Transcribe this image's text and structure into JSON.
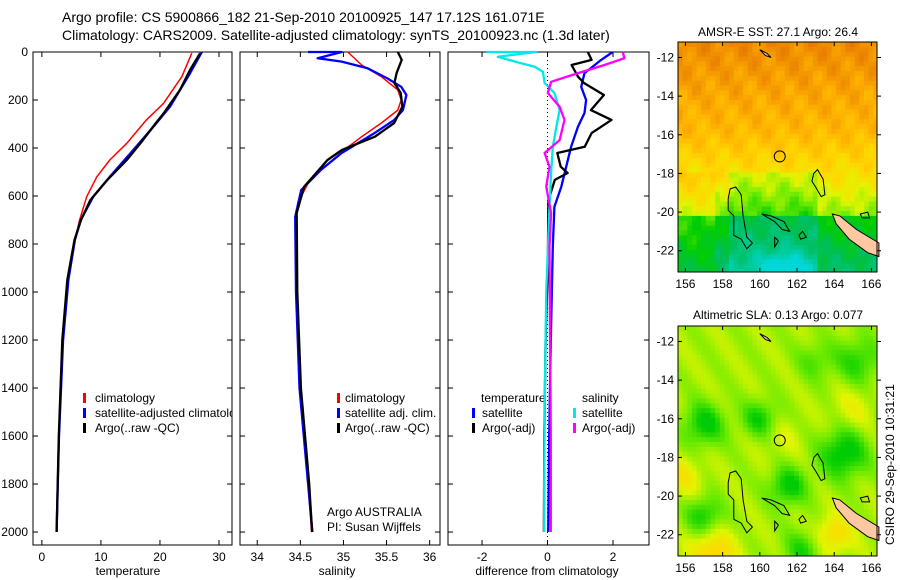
{
  "header": {
    "line1": "Argo profile: CS 5900866_182 21-Sep-2010 20100925_147 17.12S 161.071E",
    "line2": "Climatology: CARS2009. Satellite-adjusted climatology: synTS_20100923.nc (1.3d later)"
  },
  "footer_stamp": "CSIRO 29-Sep-2010 10:31:21",
  "colors": {
    "climatology": "#ff0000",
    "satellite": "#0000ff",
    "argo": "#000000",
    "sal_satellite": "#00e8e8",
    "sal_argo": "#ff00ff",
    "land": "#ffc8a0"
  },
  "chart_data": [
    {
      "type": "line",
      "id": "temperature",
      "xlabel": "temperature",
      "ylabel": "",
      "xlim": [
        -1.5,
        32.2
      ],
      "ylim": [
        2054,
        0
      ],
      "xticks": [
        "0",
        "10",
        "20",
        "30"
      ],
      "xtick_values": [
        0,
        10,
        20,
        30
      ],
      "yticks": [
        "0",
        "200",
        "400",
        "600",
        "800",
        "1000",
        "1200",
        "1400",
        "1600",
        "1800",
        "2000"
      ],
      "ytick_values": [
        0,
        200,
        400,
        600,
        800,
        1000,
        1200,
        1400,
        1600,
        1800,
        2000
      ],
      "legend": [
        "climatology",
        "satellite-adjusted climatology",
        "Argo(..raw -QC)"
      ],
      "series": [
        {
          "name": "climatology",
          "color": "#ff0000",
          "depth": [
            5,
            103,
            214,
            283,
            380,
            450,
            520,
            603,
            700,
            783,
            950,
            1200,
            1600,
            2000
          ],
          "values": [
            25.4,
            23.7,
            20.6,
            17.7,
            14.4,
            11.5,
            9.3,
            7.6,
            6.4,
            5.6,
            4.5,
            3.6,
            2.9,
            2.5
          ]
        },
        {
          "name": "satellite-adjusted climatology",
          "color": "#0000ff",
          "depth": [
            0,
            88,
            228,
            311,
            408,
            520,
            603,
            700,
            783,
            950,
            1200,
            1600,
            2000
          ],
          "values": [
            27.1,
            25.1,
            21.7,
            18.9,
            15.5,
            11.5,
            8.7,
            6.6,
            5.6,
            4.5,
            3.6,
            2.9,
            2.5
          ]
        },
        {
          "name": "Argo(..raw -QC)",
          "color": "#000000",
          "depth": [
            5,
            75,
            158,
            256,
            296,
            367,
            450,
            533,
            617,
            700,
            783,
            950,
            1200,
            1600,
            2000
          ],
          "values": [
            26.8,
            25.0,
            23.3,
            20.6,
            19.4,
            17.2,
            14.4,
            11.0,
            8.1,
            6.6,
            5.6,
            4.4,
            3.5,
            2.8,
            2.4
          ]
        }
      ]
    },
    {
      "type": "line",
      "id": "salinity",
      "xlabel": "salinity",
      "xlim": [
        33.8,
        36.12
      ],
      "ylim": [
        2054,
        0
      ],
      "xticks": [
        "34",
        "34.5",
        "35",
        "35.5",
        "36"
      ],
      "xtick_values": [
        34,
        34.5,
        35,
        35.5,
        36
      ],
      "legend": [
        "climatology",
        "satellite adj. clim.",
        "Argo(..raw -QC)"
      ],
      "annotation": [
        "Argo AUSTRALIA",
        "PI: Susan Wijffels"
      ],
      "series": [
        {
          "name": "climatology",
          "color": "#ff0000",
          "depth": [
            0,
            54,
            103,
            158,
            200,
            242,
            296,
            353,
            408,
            478,
            546,
            629,
            729,
            1000,
            1400,
            1800,
            2000
          ],
          "values": [
            35.05,
            35.21,
            35.44,
            35.63,
            35.67,
            35.63,
            35.44,
            35.21,
            35.01,
            34.78,
            34.59,
            34.47,
            34.44,
            34.45,
            34.49,
            34.59,
            34.63
          ]
        },
        {
          "name": "satellite adj. clim.",
          "color": "#0000ff",
          "depth": [
            0,
            0,
            26,
            40,
            68,
            110,
            145,
            179,
            242,
            283,
            338,
            421,
            491,
            575,
            687,
            1000,
            1400,
            1800,
            2000
          ],
          "values": [
            34.59,
            34.98,
            34.7,
            34.98,
            35.28,
            35.51,
            35.67,
            35.73,
            35.69,
            35.59,
            35.36,
            34.98,
            34.74,
            34.51,
            34.44,
            34.45,
            34.49,
            34.59,
            34.64
          ]
        },
        {
          "name": "Argo(..raw -QC)",
          "color": "#000000",
          "depth": [
            0,
            33,
            88,
            129,
            171,
            228,
            296,
            353,
            380,
            408,
            450,
            561,
            671,
            1000,
            1400,
            1800,
            2000
          ],
          "values": [
            35.63,
            35.67,
            35.61,
            35.59,
            35.67,
            35.69,
            35.59,
            35.36,
            35.17,
            34.98,
            34.82,
            34.55,
            34.46,
            34.46,
            34.5,
            34.6,
            34.64
          ]
        }
      ]
    },
    {
      "type": "line",
      "id": "difference",
      "xlabel": "difference from climatology",
      "xlim": [
        -3.04,
        3.1
      ],
      "ylim": [
        2054,
        0
      ],
      "xticks": [
        "-2",
        "0",
        "2"
      ],
      "xtick_values": [
        -2,
        0,
        2
      ],
      "legend_temperature": {
        "title": "temperature",
        "items": [
          "satellite",
          "Argo(-adj)"
        ]
      },
      "legend_salinity": {
        "title": "salinity",
        "items": [
          "satellite",
          "Argo(-adj)"
        ]
      },
      "series": [
        {
          "name": "temperature satellite",
          "color": "#0000ff",
          "depth": [
            0,
            33,
            88,
            145,
            200,
            254,
            311,
            395,
            478,
            561,
            645,
            811,
            1200,
            1600,
            2000
          ],
          "values": [
            1.99,
            1.64,
            1.13,
            1.03,
            1.18,
            1.13,
            0.93,
            0.72,
            0.57,
            0.42,
            0.21,
            0.16,
            0.1,
            0.05,
            0.02
          ]
        },
        {
          "name": "temperature Argo(-adj)",
          "color": "#000000",
          "depth": [
            0,
            33,
            54,
            103,
            129,
            179,
            242,
            283,
            338,
            395,
            421,
            478,
            504,
            533,
            617,
            900,
            1200,
            1600,
            2000
          ],
          "values": [
            1.23,
            1.33,
            0.72,
            0.93,
            1.13,
            1.74,
            1.33,
            1.94,
            1.33,
            1.13,
            0.31,
            0.42,
            0.62,
            0.21,
            0.01,
            0.0,
            -0.05,
            -0.08,
            -0.1
          ]
        },
        {
          "name": "salinity satellite",
          "color": "#00e8e8",
          "depth": [
            0,
            0,
            20,
            47,
            61,
            82,
            129,
            171,
            242,
            311,
            395,
            504,
            645,
            1004,
            1400,
            1800,
            2000
          ],
          "values": [
            -1.87,
            -0.35,
            -1.52,
            -0.8,
            -0.4,
            -0.14,
            -0.09,
            0.21,
            0.37,
            0.27,
            0.16,
            0.11,
            0.06,
            -0.04,
            -0.08,
            -0.1,
            -0.1
          ]
        },
        {
          "name": "salinity Argo(-adj)",
          "color": "#ff00ff",
          "depth": [
            0,
            26,
            54,
            88,
            124,
            171,
            228,
            283,
            367,
            421,
            478,
            561,
            671,
            811,
            1200,
            1600,
            2000
          ],
          "values": [
            2.3,
            2.35,
            1.74,
            0.93,
            0.11,
            0.01,
            0.37,
            0.52,
            0.37,
            -0.09,
            0.06,
            -0.04,
            0.11,
            0.06,
            0.08,
            0.1,
            0.1
          ]
        }
      ]
    },
    {
      "type": "heatmap",
      "id": "sst-map",
      "title": "AMSR-E SST: 27.1 Argo: 26.4",
      "xlim": [
        155.6,
        166.3
      ],
      "ylim": [
        -23.1,
        -11.2
      ],
      "xticks": [
        "156",
        "158",
        "160",
        "162",
        "164",
        "166"
      ],
      "xtick_values": [
        156,
        158,
        160,
        162,
        164,
        166
      ],
      "yticks": [
        "-12",
        "-14",
        "-16",
        "-18",
        "-20",
        "-22"
      ],
      "ytick_values": [
        -12,
        -14,
        -16,
        -18,
        -20,
        -22
      ],
      "argo_position": {
        "lon": 161.071,
        "lat": -17.12
      }
    },
    {
      "type": "heatmap",
      "id": "sla-map",
      "title": "Altimetric SLA: 0.13 Argo: 0.077",
      "xlim": [
        155.6,
        166.3
      ],
      "ylim": [
        -23.1,
        -11.2
      ],
      "xticks": [
        "156",
        "158",
        "160",
        "162",
        "164",
        "166"
      ],
      "xtick_values": [
        156,
        158,
        160,
        162,
        164,
        166
      ],
      "yticks": [
        "-12",
        "-14",
        "-16",
        "-18",
        "-20",
        "-22"
      ],
      "ytick_values": [
        -12,
        -14,
        -16,
        -18,
        -20,
        -22
      ],
      "argo_position": {
        "lon": 161.071,
        "lat": -17.12
      }
    }
  ]
}
